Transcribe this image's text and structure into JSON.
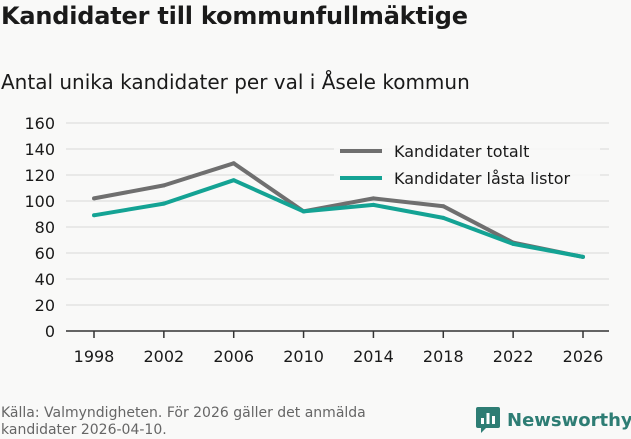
{
  "header": {
    "title": "Kandidater till kommunfullmäktige",
    "subtitle": "Antal unika kandidater per val i Åsele kommun"
  },
  "footer": {
    "source": "Källa: Valmyndigheten. För 2026 gäller det anmälda kandidater 2026-04-10.",
    "brand": "Newsworthy"
  },
  "colors": {
    "series_total": "#6f6f6f",
    "series_locked": "#14a394",
    "grid": "#d9d9d9",
    "axis": "#333333",
    "brand": "#2e7d74"
  },
  "chart_data": {
    "type": "line",
    "title": "Kandidater till kommunfullmäktige",
    "subtitle": "Antal unika kandidater per val i Åsele kommun",
    "x": [
      "1998",
      "2002",
      "2006",
      "2010",
      "2014",
      "2018",
      "2022",
      "2026"
    ],
    "yticks": [
      "0",
      "20",
      "40",
      "60",
      "80",
      "100",
      "120",
      "140",
      "160"
    ],
    "ylim": [
      0,
      160
    ],
    "grid": true,
    "legend": "top-right",
    "series": [
      {
        "name": "Kandidater totalt",
        "values": [
          102,
          112,
          129,
          92,
          102,
          96,
          68,
          57
        ]
      },
      {
        "name": "Kandidater låsta listor",
        "values": [
          89,
          98,
          116,
          92,
          97,
          87,
          67,
          57
        ]
      }
    ]
  }
}
